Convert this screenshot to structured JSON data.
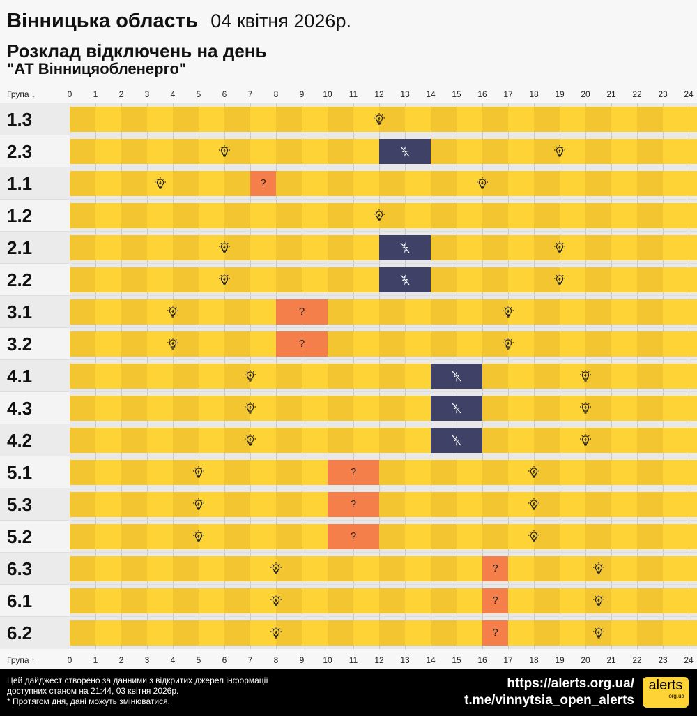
{
  "header": {
    "title": "Вінницька область",
    "date": "04 квітня 2026р.",
    "subtitle": "Розклад відключень на день",
    "company": "\"АТ Вінницяобленерго\""
  },
  "axis": {
    "top_label": "Група ↓",
    "bottom_label": "Група ↑",
    "hours": [
      0,
      1,
      2,
      3,
      4,
      5,
      6,
      7,
      8,
      9,
      10,
      11,
      12,
      13,
      14,
      15,
      16,
      17,
      18,
      19,
      20,
      21,
      22,
      23,
      24
    ]
  },
  "colors": {
    "on_light": "#fdd335",
    "on_dark": "#f2c531",
    "off": "#3f4266",
    "maybe": "#f57f4b"
  },
  "legend_icons": {
    "on": "lightbulb-icon",
    "off": "power-off-icon",
    "maybe": "question-mark"
  },
  "maybe_symbol": "?",
  "rows": [
    {
      "group": "1.3",
      "off": [],
      "maybe": []
    },
    {
      "group": "2.3",
      "off": [
        [
          12,
          14
        ]
      ],
      "maybe": []
    },
    {
      "group": "1.1",
      "off": [],
      "maybe": [
        [
          7,
          8
        ]
      ]
    },
    {
      "group": "1.2",
      "off": [],
      "maybe": []
    },
    {
      "group": "2.1",
      "off": [
        [
          12,
          14
        ]
      ],
      "maybe": []
    },
    {
      "group": "2.2",
      "off": [
        [
          12,
          14
        ]
      ],
      "maybe": []
    },
    {
      "group": "3.1",
      "off": [],
      "maybe": [
        [
          8,
          10
        ]
      ]
    },
    {
      "group": "3.2",
      "off": [],
      "maybe": [
        [
          8,
          10
        ]
      ]
    },
    {
      "group": "4.1",
      "off": [
        [
          14,
          16
        ]
      ],
      "maybe": []
    },
    {
      "group": "4.3",
      "off": [
        [
          14,
          16
        ]
      ],
      "maybe": []
    },
    {
      "group": "4.2",
      "off": [
        [
          14,
          16
        ]
      ],
      "maybe": []
    },
    {
      "group": "5.1",
      "off": [],
      "maybe": [
        [
          10,
          12
        ]
      ]
    },
    {
      "group": "5.3",
      "off": [],
      "maybe": [
        [
          10,
          12
        ]
      ]
    },
    {
      "group": "5.2",
      "off": [],
      "maybe": [
        [
          10,
          12
        ]
      ]
    },
    {
      "group": "6.3",
      "off": [],
      "maybe": [
        [
          16,
          17
        ]
      ]
    },
    {
      "group": "6.1",
      "off": [],
      "maybe": [
        [
          16,
          17
        ]
      ]
    },
    {
      "group": "6.2",
      "off": [],
      "maybe": [
        [
          16,
          17
        ]
      ]
    }
  ],
  "footer": {
    "line1": "Цей дайджест створено за данними з відкритих джерел інформації",
    "line2": "доступних станом на 21:44, 03 квітня 2026р.",
    "line3": "* Протягом дня, дані можуть змінюватися.",
    "url": "https://alerts.org.ua/",
    "telegram": "t.me/vinnytsia_open_alerts",
    "logo_text": "alerts",
    "logo_sub": "org.ua"
  }
}
